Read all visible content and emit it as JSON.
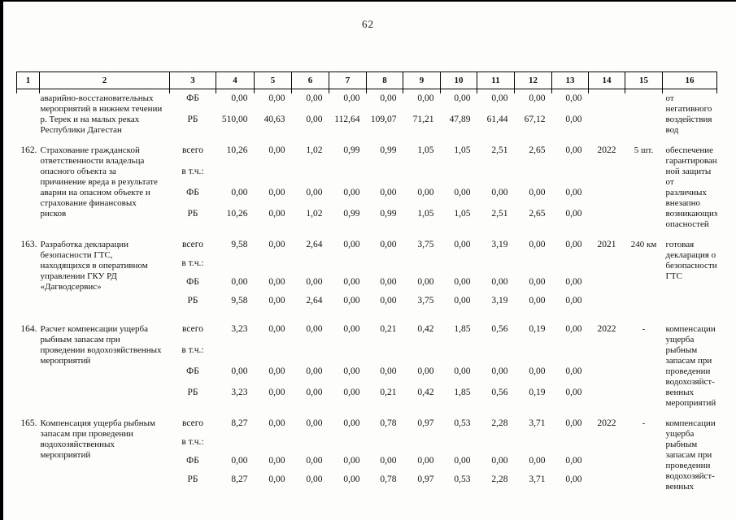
{
  "page": {
    "number": "62"
  },
  "table": {
    "header": [
      "1",
      "2",
      "3",
      "4",
      "5",
      "6",
      "7",
      "8",
      "9",
      "10",
      "11",
      "12",
      "13",
      "14",
      "15",
      "16"
    ],
    "rows": [
      {
        "num": "",
        "name": "аварийно-восстановительных мероприятий в нижнем течении р. Терек и на малых реках Республики Дагестан",
        "lines": [
          {
            "label": "ФБ",
            "values": [
              "0,00",
              "0,00",
              "0,00",
              "0,00",
              "0,00",
              "0,00",
              "0,00",
              "0,00",
              "0,00",
              "0,00"
            ]
          },
          {
            "label": "РБ",
            "values": [
              "510,00",
              "40,63",
              "0,00",
              "112,64",
              "109,07",
              "71,21",
              "47,89",
              "61,44",
              "67,12",
              "0,00"
            ]
          }
        ],
        "year": "",
        "qty": "",
        "result": "от негативного воздействия вод"
      },
      {
        "num": "162.",
        "name": "Страхование гражданской ответственности владельца опасного объекта за причинение вреда в результате аварии на опасном объекте и страхование финансовых рисков",
        "lines": [
          {
            "label": "всего",
            "values": [
              "10,26",
              "0,00",
              "1,02",
              "0,99",
              "0,99",
              "1,05",
              "1,05",
              "2,51",
              "2,65",
              "0,00"
            ]
          },
          {
            "label": "в т.ч.:",
            "values": []
          },
          {
            "label": "ФБ",
            "values": [
              "0,00",
              "0,00",
              "0,00",
              "0,00",
              "0,00",
              "0,00",
              "0,00",
              "0,00",
              "0,00",
              "0,00"
            ]
          },
          {
            "label": "РБ",
            "values": [
              "10,26",
              "0,00",
              "1,02",
              "0,99",
              "0,99",
              "1,05",
              "1,05",
              "2,51",
              "2,65",
              "0,00"
            ]
          }
        ],
        "year": "2022",
        "qty": "5 шт.",
        "result": "обеспечение гарантирован-ной защиты от различных внезапно возникающих опасностей"
      },
      {
        "num": "163.",
        "name": "Разработка декларации безопасности ГТС, находящихся в оперативном управлении ГКУ РД «Дагводсервис»",
        "lines": [
          {
            "label": "всего",
            "values": [
              "9,58",
              "0,00",
              "2,64",
              "0,00",
              "0,00",
              "3,75",
              "0,00",
              "3,19",
              "0,00",
              "0,00"
            ]
          },
          {
            "label": "в т.ч.:",
            "values": []
          },
          {
            "label": "ФБ",
            "values": [
              "0,00",
              "0,00",
              "0,00",
              "0,00",
              "0,00",
              "0,00",
              "0,00",
              "0,00",
              "0,00",
              "0,00"
            ]
          },
          {
            "label": "РБ",
            "values": [
              "9,58",
              "0,00",
              "2,64",
              "0,00",
              "0,00",
              "3,75",
              "0,00",
              "3,19",
              "0,00",
              "0,00"
            ]
          }
        ],
        "year": "2021",
        "qty": "240 км",
        "result": "готовая декларация о безопасности ГТС"
      },
      {
        "num": "164.",
        "name": "Расчет компенсации ущерба рыбным запасам при проведении водохозяйственных мероприятий",
        "lines": [
          {
            "label": "всего",
            "values": [
              "3,23",
              "0,00",
              "0,00",
              "0,00",
              "0,21",
              "0,42",
              "1,85",
              "0,56",
              "0,19",
              "0,00"
            ]
          },
          {
            "label": "в т.ч.:",
            "values": []
          },
          {
            "label": "ФБ",
            "values": [
              "0,00",
              "0,00",
              "0,00",
              "0,00",
              "0,00",
              "0,00",
              "0,00",
              "0,00",
              "0,00",
              "0,00"
            ]
          },
          {
            "label": "РБ",
            "values": [
              "3,23",
              "0,00",
              "0,00",
              "0,00",
              "0,21",
              "0,42",
              "1,85",
              "0,56",
              "0,19",
              "0,00"
            ]
          }
        ],
        "year": "2022",
        "qty": "-",
        "result": "компенсации ущерба рыбным запасам при проведении водохозяйст-венных мероприятий"
      },
      {
        "num": "165.",
        "name": "Компенсация ущерба рыбным запасам при проведении водохозяйственных мероприятий",
        "lines": [
          {
            "label": "всего",
            "values": [
              "8,27",
              "0,00",
              "0,00",
              "0,00",
              "0,78",
              "0,97",
              "0,53",
              "2,28",
              "3,71",
              "0,00"
            ]
          },
          {
            "label": "в т.ч.:",
            "values": []
          },
          {
            "label": "ФБ",
            "values": [
              "0,00",
              "0,00",
              "0,00",
              "0,00",
              "0,00",
              "0,00",
              "0,00",
              "0,00",
              "0,00",
              "0,00"
            ]
          },
          {
            "label": "РБ",
            "values": [
              "8,27",
              "0,00",
              "0,00",
              "0,00",
              "0,78",
              "0,97",
              "0,53",
              "2,28",
              "3,71",
              "0,00"
            ]
          }
        ],
        "year": "2022",
        "qty": "-",
        "result": "компенсации ущерба рыбным запасам при проведении водохозяйст-венных"
      }
    ]
  }
}
